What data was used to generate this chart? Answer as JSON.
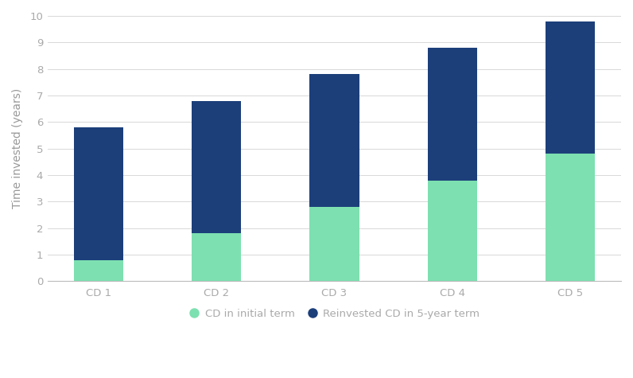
{
  "categories": [
    "CD 1",
    "CD 2",
    "CD 3",
    "CD 4",
    "CD 5"
  ],
  "initial_term": [
    0.8,
    1.8,
    2.8,
    3.8,
    4.8
  ],
  "reinvested_term": [
    5.0,
    5.0,
    5.0,
    5.0,
    5.0
  ],
  "color_initial": "#7de0b0",
  "color_reinvested": "#1c3f7a",
  "ylabel": "Time invested (years)",
  "ylim": [
    0,
    10
  ],
  "yticks": [
    0,
    1,
    2,
    3,
    4,
    5,
    6,
    7,
    8,
    9,
    10
  ],
  "legend_initial": "CD in initial term",
  "legend_reinvested": "Reinvested CD in 5-year term",
  "background_color": "#ffffff",
  "grid_color": "#d8d8d8",
  "bar_width": 0.42,
  "label_fontsize": 10,
  "tick_fontsize": 9.5,
  "legend_fontsize": 9.5,
  "tick_color": "#aaaaaa",
  "label_color": "#999999"
}
